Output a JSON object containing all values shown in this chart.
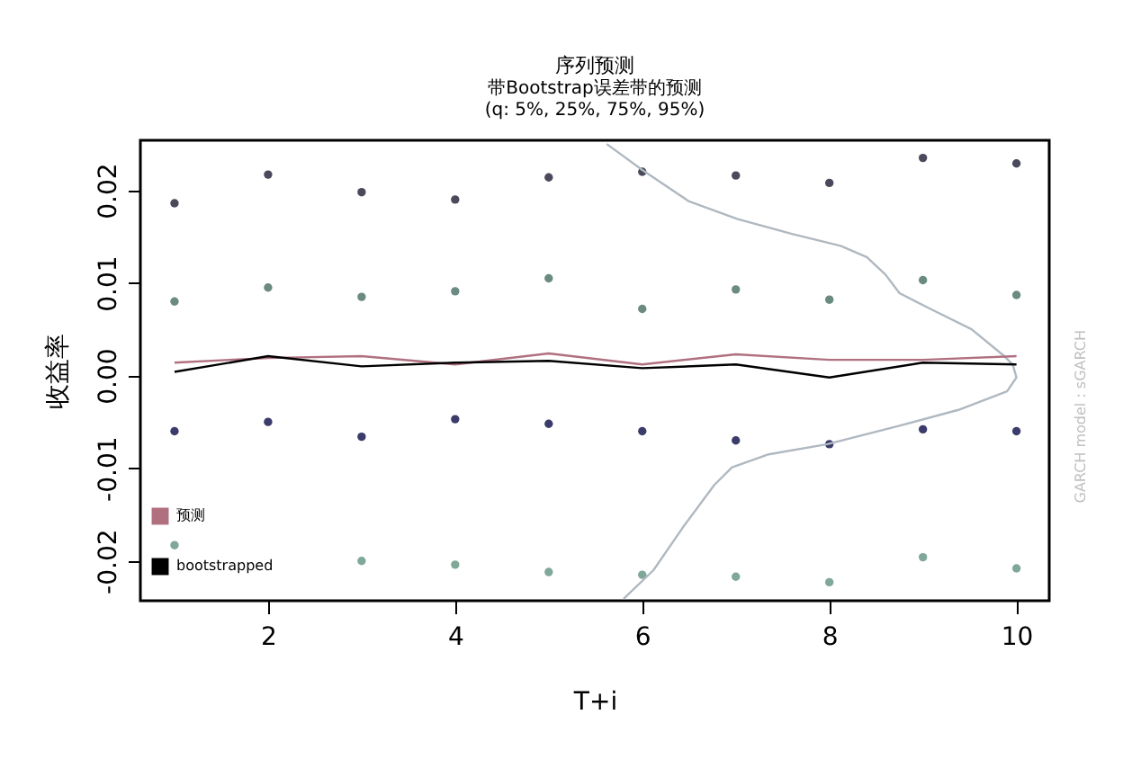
{
  "chart_data": {
    "type": "scatter",
    "title": "序列预测",
    "subtitle": "带Bootstrap误差带的预测\n(q: 5%, 25%, 75%, 95%)",
    "xlabel": "T+i",
    "ylabel": "收益率",
    "annotations": [
      "GARCH model : sGARCH"
    ],
    "x": [
      1,
      2,
      3,
      4,
      5,
      6,
      7,
      8,
      9,
      10
    ],
    "xlim": [
      0.635,
      10.35
    ],
    "xticks": [
      2,
      4,
      6,
      8,
      10
    ],
    "ylim": [
      -0.0243,
      0.0254
    ],
    "yticks": [
      {
        "value": -0.02,
        "label": "-0.02"
      },
      {
        "value": -0.01,
        "label": "-0.01"
      },
      {
        "value": 0,
        "label": "0.00"
      },
      {
        "value": 0.01,
        "label": "0.01"
      },
      {
        "value": 0.02,
        "label": "0.02"
      }
    ],
    "grid": false,
    "legend": "bottom left",
    "series": [
      {
        "marker": "circle",
        "color": "#4a4a5c",
        "values": [
          0.0186,
          0.0217,
          0.0198,
          0.019,
          0.0214,
          0.022,
          0.0216,
          0.0208,
          0.0235,
          0.0229
        ]
      },
      {
        "marker": "circle",
        "color": "#6a8a82",
        "values": [
          0.008,
          0.0095,
          0.0085,
          0.0091,
          0.0105,
          0.0072,
          0.0093,
          0.0082,
          0.0103,
          0.0087
        ]
      },
      {
        "marker": "circle",
        "color": "#3c3c6c",
        "values": [
          -0.006,
          -0.005,
          -0.0066,
          -0.0047,
          -0.0052,
          -0.006,
          -0.007,
          -0.0074,
          -0.0058,
          -0.006
        ]
      },
      {
        "marker": "circle",
        "color": "#80a898",
        "values": [
          -0.0183,
          null,
          -0.02,
          -0.0204,
          -0.0212,
          -0.0215,
          -0.0217,
          -0.0223,
          -0.0196,
          -0.0208
        ]
      },
      {
        "type": "line",
        "marker": "none",
        "color": "#b0b8c0",
        "x": [
          5.62,
          6.0,
          6.5,
          7.02,
          7.6,
          8.12,
          8.4,
          8.6,
          8.75,
          9.08,
          9.52,
          9.87,
          9.96,
          10.0,
          9.9,
          9.38,
          8.75,
          7.98,
          7.35,
          6.96,
          6.77,
          6.44,
          6.12,
          5.8
        ],
        "values": [
          0.025,
          0.0222,
          0.0188,
          0.0169,
          0.0153,
          0.014,
          0.0128,
          0.0109,
          0.0089,
          0.0072,
          0.005,
          0.0021,
          0.0012,
          -0.0002,
          -0.0017,
          -0.0037,
          -0.0054,
          -0.0074,
          -0.0085,
          -0.0099,
          -0.0118,
          -0.0163,
          -0.021,
          -0.0241
        ]
      },
      {
        "type": "line",
        "marker": "none",
        "name": "预测",
        "color": "#b07080",
        "values": [
          0.0014,
          0.0019,
          0.0021,
          0.0012,
          0.0024,
          0.0012,
          0.0023,
          0.0017,
          0.0017,
          0.0021
        ]
      },
      {
        "type": "line",
        "marker": "none",
        "name": "bootstrapped",
        "color": "#000000",
        "values": [
          0.0004,
          0.0021,
          0.001,
          0.0014,
          0.0016,
          0.0008,
          0.0012,
          -0.0002,
          0.0014,
          0.0012
        ]
      }
    ]
  }
}
